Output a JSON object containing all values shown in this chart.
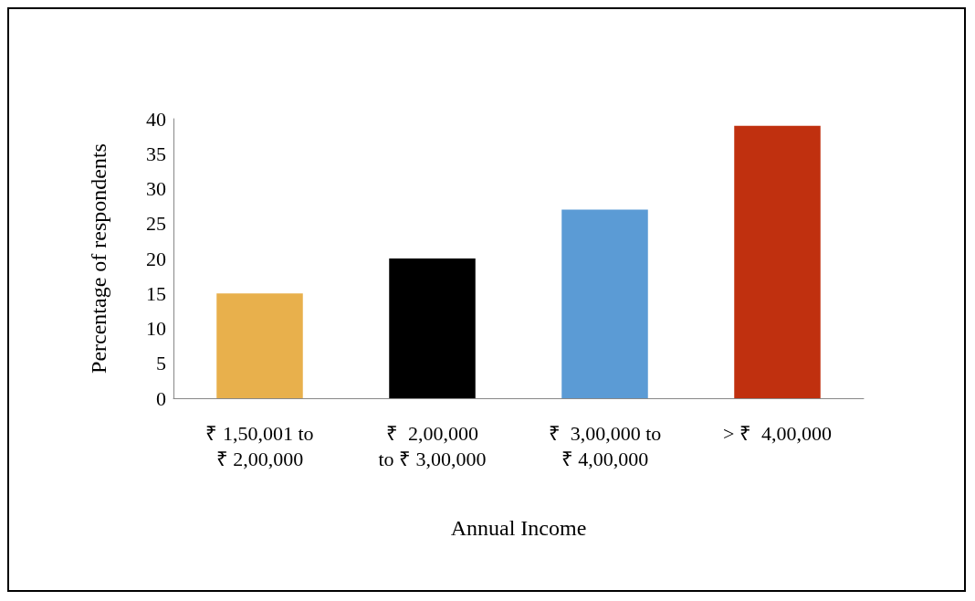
{
  "chart_data": {
    "type": "bar",
    "xlabel": "Annual Income",
    "ylabel": "Percentage of respondents",
    "categories": [
      "₹ 1,50,001 to\n₹ 2,00,000",
      "₹  2,00,000\nto ₹ 3,00,000",
      "₹  3,00,000 to\n₹ 4,00,000",
      "> ₹  4,00,000"
    ],
    "values": [
      15,
      20,
      27,
      39
    ],
    "colors": [
      "#e8b04c",
      "#000000",
      "#5b9bd5",
      "#c0300f"
    ],
    "ylim": [
      0,
      40
    ],
    "yticks": [
      0,
      5,
      10,
      15,
      20,
      25,
      30,
      35,
      40
    ]
  }
}
